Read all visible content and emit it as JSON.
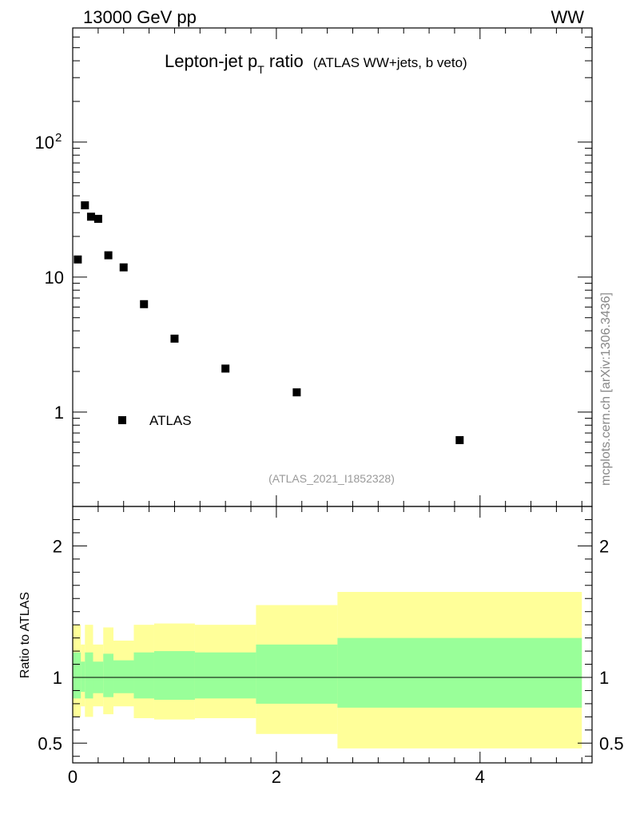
{
  "header": {
    "left": "13000 GeV pp",
    "right": "WW"
  },
  "title": {
    "main": "Lepton-jet p",
    "sub": "T",
    "main2": " ratio",
    "paren": "(ATLAS WW+jets, b veto)"
  },
  "side_label": "mcplots.cern.ch [arXiv:1306.3436]",
  "analysis_id": "(ATLAS_2021_I1852328)",
  "ratio_ylabel": "Ratio to ATLAS",
  "colors": {
    "yellow_band": "#ffff99",
    "green_band": "#99ff99",
    "marker": "#000000"
  },
  "chart_data": [
    {
      "type": "scatter",
      "yscale": "log",
      "xlim": [
        0,
        5.1
      ],
      "ylim": [
        0.2,
        700
      ],
      "y_ticks": [
        {
          "value": 100,
          "label": "10",
          "sup": "2"
        },
        {
          "value": 10,
          "label": "10",
          "sup": ""
        },
        {
          "value": 1,
          "label": "1",
          "sup": ""
        }
      ],
      "legend": {
        "label": "ATLAS",
        "position": "lower-left"
      },
      "series": [
        {
          "name": "ATLAS",
          "x": [
            0.05,
            0.12,
            0.18,
            0.25,
            0.35,
            0.5,
            0.7,
            1.0,
            1.5,
            2.2,
            3.8
          ],
          "y": [
            13.5,
            34,
            28,
            27,
            14.5,
            11.8,
            6.3,
            3.5,
            2.1,
            1.4,
            0.62
          ]
        }
      ]
    },
    {
      "type": "area",
      "xlim": [
        0,
        5.1
      ],
      "ylim": [
        0.35,
        2.3
      ],
      "y_ticks": [
        0.5,
        1,
        2
      ],
      "x_ticks": [
        0,
        2,
        4
      ],
      "reference_line": 1,
      "bins": [
        {
          "lo": 0.0,
          "hi": 0.08,
          "yellow": [
            0.7,
            1.4
          ],
          "green": [
            0.84,
            1.19
          ]
        },
        {
          "lo": 0.08,
          "hi": 0.12,
          "yellow": [
            0.78,
            1.25
          ],
          "green": [
            0.89,
            1.12
          ]
        },
        {
          "lo": 0.12,
          "hi": 0.2,
          "yellow": [
            0.7,
            1.4
          ],
          "green": [
            0.84,
            1.19
          ]
        },
        {
          "lo": 0.2,
          "hi": 0.3,
          "yellow": [
            0.78,
            1.25
          ],
          "green": [
            0.88,
            1.12
          ]
        },
        {
          "lo": 0.3,
          "hi": 0.4,
          "yellow": [
            0.72,
            1.38
          ],
          "green": [
            0.85,
            1.18
          ]
        },
        {
          "lo": 0.4,
          "hi": 0.6,
          "yellow": [
            0.78,
            1.28
          ],
          "green": [
            0.88,
            1.13
          ]
        },
        {
          "lo": 0.6,
          "hi": 0.8,
          "yellow": [
            0.69,
            1.4
          ],
          "green": [
            0.84,
            1.19
          ]
        },
        {
          "lo": 0.8,
          "hi": 1.2,
          "yellow": [
            0.68,
            1.41
          ],
          "green": [
            0.83,
            1.2
          ]
        },
        {
          "lo": 1.2,
          "hi": 1.8,
          "yellow": [
            0.69,
            1.4
          ],
          "green": [
            0.84,
            1.19
          ]
        },
        {
          "lo": 1.8,
          "hi": 2.6,
          "yellow": [
            0.57,
            1.55
          ],
          "green": [
            0.8,
            1.25
          ]
        },
        {
          "lo": 2.6,
          "hi": 5.0,
          "yellow": [
            0.46,
            1.65
          ],
          "green": [
            0.77,
            1.3
          ]
        }
      ]
    }
  ]
}
